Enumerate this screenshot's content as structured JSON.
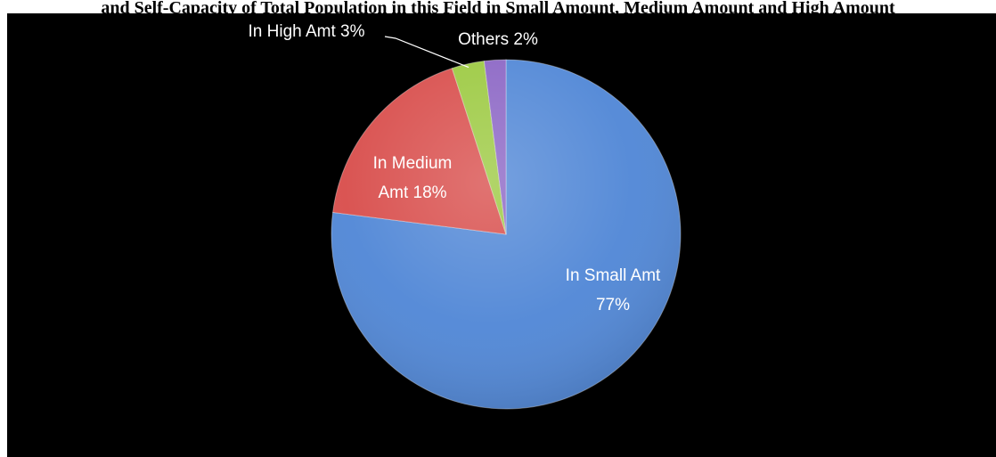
{
  "chart_data": {
    "type": "pie",
    "title": "and Self-Capacity of Total Population in this Field in Small Amount, Medium Amount and High Amount",
    "slices": [
      {
        "label_lines": [
          "In Small Amt",
          "77%"
        ],
        "value": 77,
        "color": "#4F86D6"
      },
      {
        "label_lines": [
          "In Medium",
          "Amt 18%"
        ],
        "value": 18,
        "color": "#D84C4A"
      },
      {
        "label_lines": [
          "In High Amt 3%"
        ],
        "value": 3,
        "color": "#9BC93F"
      },
      {
        "label_lines": [
          "Others 2%"
        ],
        "value": 2,
        "color": "#8A64C4"
      }
    ],
    "legend": "none",
    "grid": false
  }
}
